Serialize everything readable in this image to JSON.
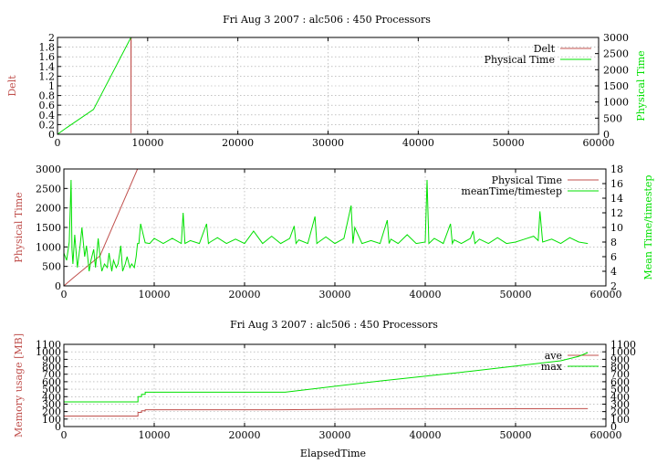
{
  "colors": {
    "red": "#c0504d",
    "green": "#00e000",
    "text": "#000000"
  },
  "chart_data": [
    {
      "type": "line",
      "title": "Fri Aug 3 2007 : alc506 : 450 Processors",
      "xlabel": "",
      "ylabel": "Delt",
      "y2label": "Physical Time",
      "xlim": [
        0,
        60000
      ],
      "ylim": [
        0,
        2
      ],
      "y2lim": [
        0,
        3000
      ],
      "xticks": [
        "0",
        "10000",
        "20000",
        "30000",
        "40000",
        "50000",
        "60000"
      ],
      "yticks": [
        "0",
        "0.2",
        "0.4",
        "0.6",
        "0.8",
        "1",
        "1.2",
        "1.4",
        "1.6",
        "1.8",
        "2"
      ],
      "y2ticks": [
        "0",
        "500",
        "1000",
        "1500",
        "2000",
        "2500",
        "3000"
      ],
      "grid": true,
      "legend": "top-right",
      "series": [
        {
          "name": "Delt",
          "color": "#c0504d",
          "axis": "y",
          "x": [
            8150,
            8160,
            8170,
            60000
          ],
          "y": [
            2,
            0.02,
            2,
            2
          ]
        },
        {
          "name": "Physical Time",
          "color": "#00e000",
          "axis": "y2",
          "x": [
            0,
            1000,
            4000,
            8150,
            8200,
            60000
          ],
          "y": [
            0,
            200,
            770,
            3000,
            3000,
            3000
          ]
        }
      ]
    },
    {
      "type": "line",
      "title": "",
      "xlabel": "",
      "ylabel": "Physical Time",
      "y2label": "Mean Time/timestep",
      "xlim": [
        0,
        60000
      ],
      "ylim": [
        0,
        3000
      ],
      "y2lim": [
        2,
        18
      ],
      "xticks": [
        "0",
        "10000",
        "20000",
        "30000",
        "40000",
        "50000",
        "60000"
      ],
      "yticks": [
        "0",
        "500",
        "1000",
        "1500",
        "2000",
        "2500",
        "3000"
      ],
      "y2ticks": [
        "2",
        "4",
        "6",
        "8",
        "10",
        "12",
        "14",
        "16",
        "18"
      ],
      "grid": true,
      "legend": "top-right",
      "series": [
        {
          "name": "Physical Time",
          "color": "#c0504d",
          "axis": "y",
          "x": [
            0,
            1000,
            4000,
            8150,
            58000
          ],
          "y": [
            0,
            200,
            770,
            3000,
            3000
          ]
        },
        {
          "name": "meanTime/timestep",
          "color": "#00e000",
          "axis": "y2",
          "x": [
            0,
            300,
            600,
            800,
            900,
            1000,
            1200,
            1500,
            1800,
            2000,
            2300,
            2500,
            2800,
            3000,
            3300,
            3500,
            3800,
            4000,
            4200,
            4500,
            4800,
            5000,
            5300,
            5500,
            5800,
            6000,
            6300,
            6500,
            6800,
            7000,
            7300,
            7500,
            7800,
            8000,
            8150,
            8300,
            8500,
            9000,
            9500,
            10000,
            11000,
            12000,
            13000,
            13200,
            13400,
            14000,
            15000,
            15800,
            16000,
            16200,
            17000,
            18000,
            19000,
            20000,
            21000,
            22000,
            23000,
            24000,
            25000,
            25500,
            25700,
            26000,
            27000,
            27800,
            28000,
            28200,
            29000,
            30000,
            31000,
            31800,
            32000,
            32200,
            33000,
            34000,
            35000,
            35800,
            36000,
            36200,
            37000,
            38000,
            39000,
            40000,
            40200,
            40400,
            41000,
            42000,
            42800,
            43000,
            43200,
            44000,
            45000,
            45300,
            45500,
            46000,
            47000,
            48000,
            49000,
            50000,
            51000,
            52000,
            52500,
            52700,
            53000,
            54000,
            55000,
            56000,
            57000,
            58000
          ],
          "y": [
            6.5,
            5.5,
            8,
            16.5,
            7,
            5,
            9,
            4.5,
            7.5,
            10,
            6,
            7.5,
            4,
            5.5,
            7,
            4.5,
            8.5,
            6,
            4,
            5,
            4.5,
            6.5,
            4,
            5.5,
            4.5,
            5,
            7.5,
            4,
            5,
            6,
            4.5,
            5,
            4.5,
            6,
            7.8,
            7.8,
            10.5,
            7.9,
            7.8,
            8.5,
            7.8,
            8.5,
            7.8,
            12,
            7.8,
            8.2,
            7.8,
            10.5,
            7.8,
            8,
            8.6,
            7.8,
            8.4,
            7.8,
            9.5,
            7.8,
            8.8,
            7.8,
            8.5,
            10.2,
            7.8,
            8.3,
            7.8,
            11.5,
            7.8,
            8,
            8.7,
            7.8,
            8.5,
            13,
            7.8,
            10,
            7.8,
            8.2,
            7.8,
            11,
            7.8,
            8.4,
            7.8,
            9,
            7.8,
            8,
            16.5,
            7.8,
            8.5,
            7.8,
            10.5,
            7.8,
            8.3,
            7.8,
            8.5,
            9.5,
            7.8,
            8.4,
            7.8,
            8.6,
            7.8,
            8,
            8.4,
            8.8,
            8.2,
            12.2,
            8,
            8.4,
            7.8,
            8.6,
            8,
            7.8
          ]
        }
      ]
    },
    {
      "type": "line",
      "title": "Fri Aug 3 2007 : alc506 : 450 Processors",
      "xlabel": "ElapsedTime",
      "ylabel": "Memory usage [MB]",
      "y2label": "",
      "xlim": [
        0,
        60000
      ],
      "ylim": [
        0,
        1100
      ],
      "y2lim": [
        0,
        1100
      ],
      "xticks": [
        "0",
        "10000",
        "20000",
        "30000",
        "40000",
        "50000",
        "60000"
      ],
      "yticks": [
        "0",
        "100",
        "200",
        "300",
        "400",
        "500",
        "600",
        "700",
        "800",
        "900",
        "1000",
        "1100"
      ],
      "y2ticks": [
        "0",
        "100",
        "200",
        "300",
        "400",
        "500",
        "600",
        "700",
        "800",
        "900",
        "1000",
        "1100"
      ],
      "grid": true,
      "legend": "top-right",
      "series": [
        {
          "name": "ave",
          "color": "#c0504d",
          "axis": "y",
          "x": [
            0,
            8200,
            8200,
            8600,
            8600,
            9000,
            9000,
            24000,
            35000,
            58000
          ],
          "y": [
            140,
            140,
            190,
            190,
            210,
            210,
            225,
            225,
            235,
            240
          ]
        },
        {
          "name": "max",
          "color": "#00e000",
          "axis": "y2",
          "x": [
            0,
            8200,
            8200,
            8600,
            8600,
            9000,
            9000,
            24500,
            35000,
            45000,
            55000,
            57000,
            58000
          ],
          "y": [
            330,
            330,
            400,
            400,
            430,
            430,
            460,
            460,
            610,
            740,
            880,
            940,
            990
          ]
        }
      ]
    }
  ]
}
